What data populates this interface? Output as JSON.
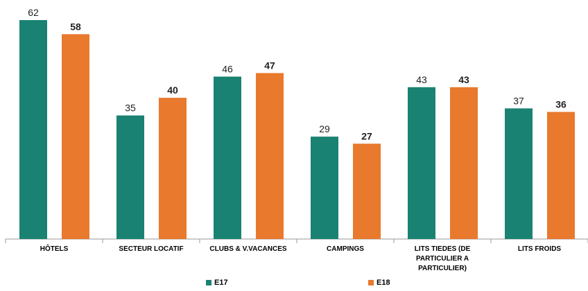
{
  "chart_data": {
    "type": "bar",
    "categories": [
      "HÔTELS",
      "SECTEUR LOCATIF",
      "CLUBS & V.VACANCES",
      "CAMPINGS",
      "LITS TIEDES (DE PARTICULIER A PARTICULIER)",
      "LITS FROIDS"
    ],
    "series": [
      {
        "name": "E17",
        "color": "#1a8272",
        "values": [
          62,
          35,
          46,
          29,
          43,
          37
        ]
      },
      {
        "name": "E18",
        "color": "#e8792d",
        "values": [
          58,
          40,
          47,
          27,
          43,
          36
        ]
      }
    ]
  }
}
